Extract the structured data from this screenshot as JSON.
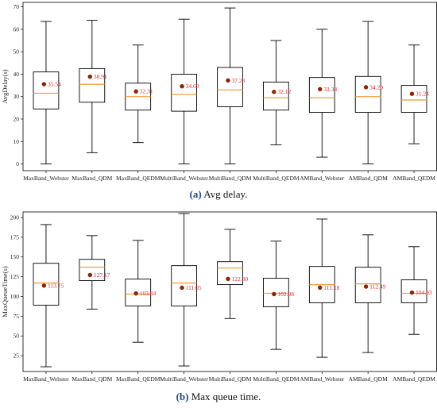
{
  "colors": {
    "box_stroke": "#000000",
    "median": "#f0a040",
    "mean_marker": "#8b2500",
    "mean_label": "#e8202a",
    "caption_label": "#1a4a8a"
  },
  "captions": [
    {
      "label": "(a)",
      "text": "Avg delay."
    },
    {
      "label": "(b)",
      "text": "Max queue time."
    }
  ],
  "chart_data": [
    {
      "type": "box",
      "ylabel": "AvgDelay(s)",
      "ylim": [
        -3,
        72
      ],
      "yticks": [
        0,
        10,
        20,
        30,
        40,
        50,
        60,
        70
      ],
      "categories": [
        "MaxBand_Webster",
        "MaxBand_QDM",
        "MaxBand_QEDM",
        "MultiBand_Webster",
        "MultiBand_QDM",
        "MultiBand_QEDM",
        "AMBand_Webster",
        "AMBand_QDM",
        "AMBand_QEDM"
      ],
      "boxes": [
        {
          "min": 0,
          "q1": 24.5,
          "median": 31.5,
          "q3": 41,
          "max": 63.5,
          "mean": 35.54,
          "mean_label": "35.54"
        },
        {
          "min": 5,
          "q1": 27.5,
          "median": 35.5,
          "q3": 42.5,
          "max": 64,
          "mean": 38.91,
          "mean_label": "38.91"
        },
        {
          "min": 9.5,
          "q1": 24,
          "median": 30,
          "q3": 36,
          "max": 53,
          "mean": 32.31,
          "mean_label": "32.31"
        },
        {
          "min": 0,
          "q1": 23.5,
          "median": 31,
          "q3": 40,
          "max": 64.5,
          "mean": 34.6,
          "mean_label": "34.60"
        },
        {
          "min": 0,
          "q1": 25.5,
          "median": 33,
          "q3": 43,
          "max": 69.5,
          "mean": 37.23,
          "mean_label": "37.23"
        },
        {
          "min": 8.5,
          "q1": 24,
          "median": 29.5,
          "q3": 36.5,
          "max": 55,
          "mean": 32.12,
          "mean_label": "32.12"
        },
        {
          "min": 3,
          "q1": 23,
          "median": 29.5,
          "q3": 38.5,
          "max": 60,
          "mean": 33.33,
          "mean_label": "33.33"
        },
        {
          "min": 0,
          "q1": 23,
          "median": 30,
          "q3": 39,
          "max": 63.5,
          "mean": 34.2,
          "mean_label": "34.20"
        },
        {
          "min": 9,
          "q1": 23,
          "median": 28.5,
          "q3": 35,
          "max": 53,
          "mean": 31.24,
          "mean_label": "31.24"
        }
      ]
    },
    {
      "type": "box",
      "ylabel": "MaxQueueTime(s)",
      "ylim": [
        5,
        207
      ],
      "yticks": [
        25,
        50,
        75,
        100,
        125,
        150,
        175,
        200
      ],
      "categories": [
        "MaxBand_Webster",
        "MaxBand_QDM",
        "MaxBand_QEDM",
        "MultiBand_Webster",
        "MultiBand_QDM",
        "MultiBand_QEDM",
        "AMBand_Webster",
        "AMBand_QDM",
        "AMBand_QEDM"
      ],
      "boxes": [
        {
          "min": 11,
          "q1": 89,
          "median": 117,
          "q3": 142,
          "max": 191,
          "mean": 113.75,
          "mean_label": "113.75"
        },
        {
          "min": 84,
          "q1": 120,
          "median": 137,
          "q3": 147,
          "max": 177,
          "mean": 127.17,
          "mean_label": "127.17"
        },
        {
          "min": 42,
          "q1": 88,
          "median": 103,
          "q3": 122,
          "max": 171,
          "mean": 103.84,
          "mean_label": "103.84"
        },
        {
          "min": 12,
          "q1": 88,
          "median": 117,
          "q3": 139,
          "max": 205,
          "mean": 111.05,
          "mean_label": "111.05"
        },
        {
          "min": 72,
          "q1": 115,
          "median": 136,
          "q3": 144,
          "max": 185,
          "mean": 122.3,
          "mean_label": "122.30"
        },
        {
          "min": 33,
          "q1": 87,
          "median": 104,
          "q3": 123,
          "max": 170,
          "mean": 102.98,
          "mean_label": "102.98"
        },
        {
          "min": 23,
          "q1": 92,
          "median": 115,
          "q3": 138,
          "max": 198,
          "mean": 111.18,
          "mean_label": "111.18"
        },
        {
          "min": 29,
          "q1": 92,
          "median": 116,
          "q3": 137,
          "max": 178,
          "mean": 112.49,
          "mean_label": "112.49"
        },
        {
          "min": 52,
          "q1": 92,
          "median": 104,
          "q3": 121,
          "max": 163,
          "mean": 104.93,
          "mean_label": "104.93"
        }
      ]
    }
  ]
}
